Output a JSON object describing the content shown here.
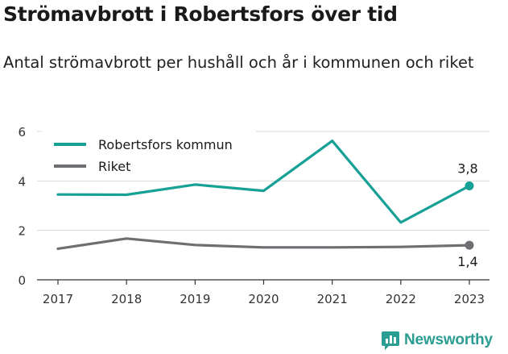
{
  "title": "Strömavbrott i Robertsfors över tid",
  "subtitle": "Antal strömavbrott per hushåll och år i kommunen och riket",
  "brand": {
    "name": "Newsworthy",
    "icon": "newsworthy-logo-icon",
    "color": "#2b9d92"
  },
  "colors": {
    "kommun": "#17a096",
    "riket": "#6f6f73",
    "grid": "#d9d9d9",
    "axis": "#333333"
  },
  "chart_data": {
    "type": "line",
    "x": [
      "2017",
      "2018",
      "2019",
      "2020",
      "2021",
      "2022",
      "2023"
    ],
    "ylim": [
      0,
      6
    ],
    "yticks": [
      "0",
      "2",
      "4",
      "6"
    ],
    "grid": true,
    "legend_position": "top-left",
    "series": [
      {
        "name": "Robertsfors kommun",
        "values": [
          3.45,
          3.44,
          3.85,
          3.6,
          5.62,
          2.32,
          3.8
        ],
        "end_label": "3,8"
      },
      {
        "name": "Riket",
        "values": [
          1.26,
          1.67,
          1.41,
          1.31,
          1.31,
          1.33,
          1.4
        ],
        "end_label": "1,4"
      }
    ]
  }
}
